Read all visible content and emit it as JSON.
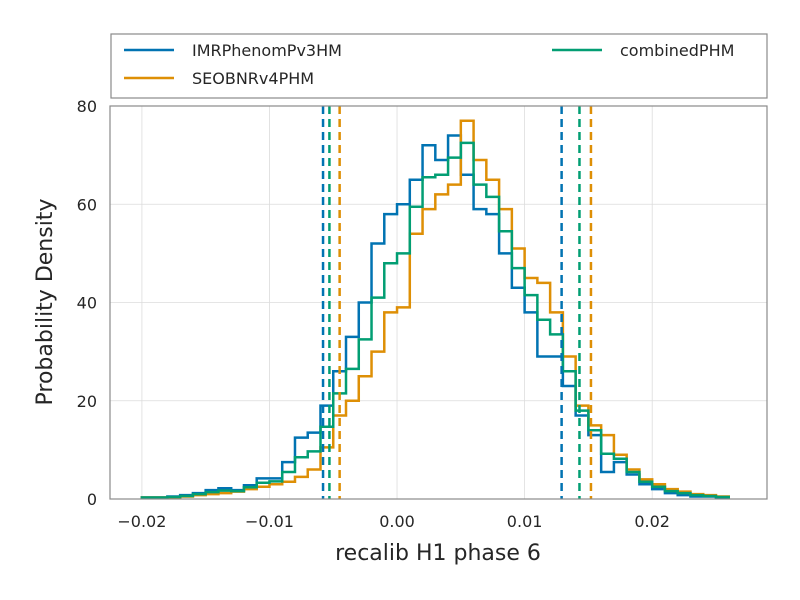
{
  "chart_data": {
    "type": "line",
    "subtype": "step-histogram",
    "title": "",
    "xlabel": "recalib H1 phase 6",
    "ylabel": "Probability Density",
    "xlim": [
      -0.0225,
      0.029
    ],
    "ylim": [
      0,
      80
    ],
    "xticks": [
      -0.02,
      -0.01,
      0.0,
      0.01,
      0.02
    ],
    "xtick_labels": [
      "−0.02",
      "−0.01",
      "0.00",
      "0.01",
      "0.02"
    ],
    "yticks": [
      0,
      20,
      40,
      60,
      80
    ],
    "ytick_labels": [
      "0",
      "20",
      "40",
      "60",
      "80"
    ],
    "grid": true,
    "legend": {
      "placement": "above plot",
      "columns": 2,
      "entries": [
        "IMRPhenomPv3HM",
        "SEOBNRv4PHM",
        "combinedPHM"
      ]
    },
    "series": [
      {
        "name": "IMRPhenomPv3HM",
        "color": "#0173b2",
        "bin_edges": [
          -0.02,
          -0.019,
          -0.018,
          -0.017,
          -0.016,
          -0.015,
          -0.014,
          -0.013,
          -0.012,
          -0.011,
          -0.01,
          -0.009,
          -0.008,
          -0.007,
          -0.006,
          -0.005,
          -0.004,
          -0.003,
          -0.002,
          -0.001,
          0.0,
          0.001,
          0.002,
          0.003,
          0.004,
          0.005,
          0.006,
          0.007,
          0.008,
          0.009,
          0.01,
          0.011,
          0.012,
          0.013,
          0.014,
          0.015,
          0.016,
          0.017,
          0.018,
          0.019,
          0.02,
          0.021,
          0.022,
          0.023,
          0.024,
          0.025,
          0.026
        ],
        "densities": [
          0.3,
          0.3,
          0.5,
          0.8,
          1.2,
          1.8,
          2.2,
          1.8,
          2.8,
          4.2,
          4.2,
          7.5,
          12.5,
          13.5,
          19.0,
          26.0,
          33.0,
          40.0,
          52.0,
          58.0,
          60.0,
          65.0,
          72.0,
          69.0,
          74.0,
          66.0,
          59.0,
          58.0,
          50.0,
          43.0,
          38.0,
          29.0,
          29.0,
          23.0,
          17.0,
          13.0,
          5.5,
          7.5,
          5.0,
          3.0,
          2.0,
          1.2,
          0.8,
          0.5,
          0.5,
          0.3
        ]
      },
      {
        "name": "SEOBNRv4PHM",
        "color": "#de8f05",
        "bin_edges": [
          -0.02,
          -0.019,
          -0.018,
          -0.017,
          -0.016,
          -0.015,
          -0.014,
          -0.013,
          -0.012,
          -0.011,
          -0.01,
          -0.009,
          -0.008,
          -0.007,
          -0.006,
          -0.005,
          -0.004,
          -0.003,
          -0.002,
          -0.001,
          0.0,
          0.001,
          0.002,
          0.003,
          0.004,
          0.005,
          0.006,
          0.007,
          0.008,
          0.009,
          0.01,
          0.011,
          0.012,
          0.013,
          0.014,
          0.015,
          0.016,
          0.017,
          0.018,
          0.019,
          0.02,
          0.021,
          0.022,
          0.023,
          0.024,
          0.025,
          0.026
        ],
        "densities": [
          0.3,
          0.3,
          0.3,
          0.5,
          0.8,
          1.0,
          1.2,
          1.5,
          2.0,
          2.5,
          3.0,
          3.5,
          4.5,
          6.0,
          10.5,
          17.0,
          20.0,
          25.0,
          30.0,
          38.0,
          39.0,
          54.0,
          59.0,
          62.0,
          64.0,
          77.0,
          69.0,
          65.0,
          59.0,
          51.0,
          45.0,
          44.0,
          38.0,
          29.0,
          19.0,
          15.0,
          13.0,
          9.0,
          6.0,
          4.0,
          3.0,
          2.0,
          1.5,
          1.0,
          0.8,
          0.5
        ]
      },
      {
        "name": "combinedPHM",
        "color": "#029e73",
        "bin_edges": [
          -0.02,
          -0.019,
          -0.018,
          -0.017,
          -0.016,
          -0.015,
          -0.014,
          -0.013,
          -0.012,
          -0.011,
          -0.01,
          -0.009,
          -0.008,
          -0.007,
          -0.006,
          -0.005,
          -0.004,
          -0.003,
          -0.002,
          -0.001,
          0.0,
          0.001,
          0.002,
          0.003,
          0.004,
          0.005,
          0.006,
          0.007,
          0.008,
          0.009,
          0.01,
          0.011,
          0.012,
          0.013,
          0.014,
          0.015,
          0.016,
          0.017,
          0.018,
          0.019,
          0.02,
          0.021,
          0.022,
          0.023,
          0.024,
          0.025,
          0.026
        ],
        "densities": [
          0.3,
          0.3,
          0.4,
          0.6,
          1.0,
          1.4,
          1.7,
          1.6,
          2.4,
          3.3,
          3.6,
          5.5,
          8.5,
          9.7,
          14.7,
          21.5,
          26.5,
          32.5,
          41.0,
          48.0,
          50.0,
          59.5,
          65.5,
          66.0,
          69.5,
          72.5,
          64.0,
          61.5,
          54.5,
          47.0,
          41.5,
          36.5,
          33.5,
          26.0,
          18.0,
          14.0,
          9.2,
          8.2,
          5.5,
          3.5,
          2.5,
          1.6,
          1.2,
          0.8,
          0.6,
          0.4
        ]
      }
    ],
    "vertical_lines": [
      {
        "series": "IMRPhenomPv3HM",
        "color": "#0173b2",
        "x": [
          -0.0058,
          0.0129
        ]
      },
      {
        "series": "combinedPHM",
        "color": "#029e73",
        "x": [
          -0.0053,
          0.0143
        ]
      },
      {
        "series": "SEOBNRv4PHM",
        "color": "#de8f05",
        "x": [
          -0.0045,
          0.0152
        ]
      }
    ]
  }
}
